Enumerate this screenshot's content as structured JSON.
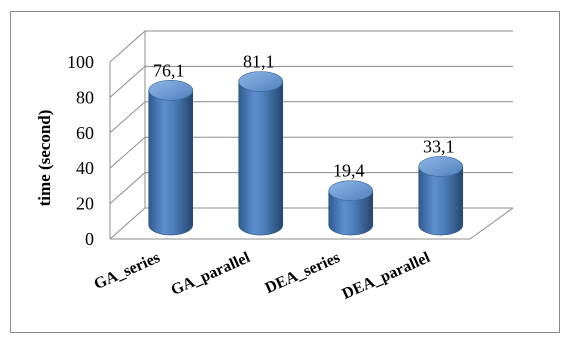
{
  "chart_data": {
    "type": "bar",
    "style": "3d-cylinder",
    "title": "",
    "xlabel": "",
    "ylabel": "time (second)",
    "ylim": [
      0,
      100
    ],
    "yticks": [
      0,
      20,
      40,
      60,
      80,
      100
    ],
    "grid": true,
    "legend": "none",
    "categories": [
      "GA_series",
      "GA_parallel",
      "DEA_series",
      "DEA_parallel"
    ],
    "values": [
      76.1,
      81.1,
      19.4,
      33.1
    ],
    "data_labels": [
      "76,1",
      "81,1",
      "19,4",
      "33,1"
    ],
    "colors": {
      "bar_main": "#4f81bd",
      "bar_dark": "#2c4d75",
      "bar_light": "#7ba7dc",
      "grid": "#8c8c8c"
    }
  }
}
